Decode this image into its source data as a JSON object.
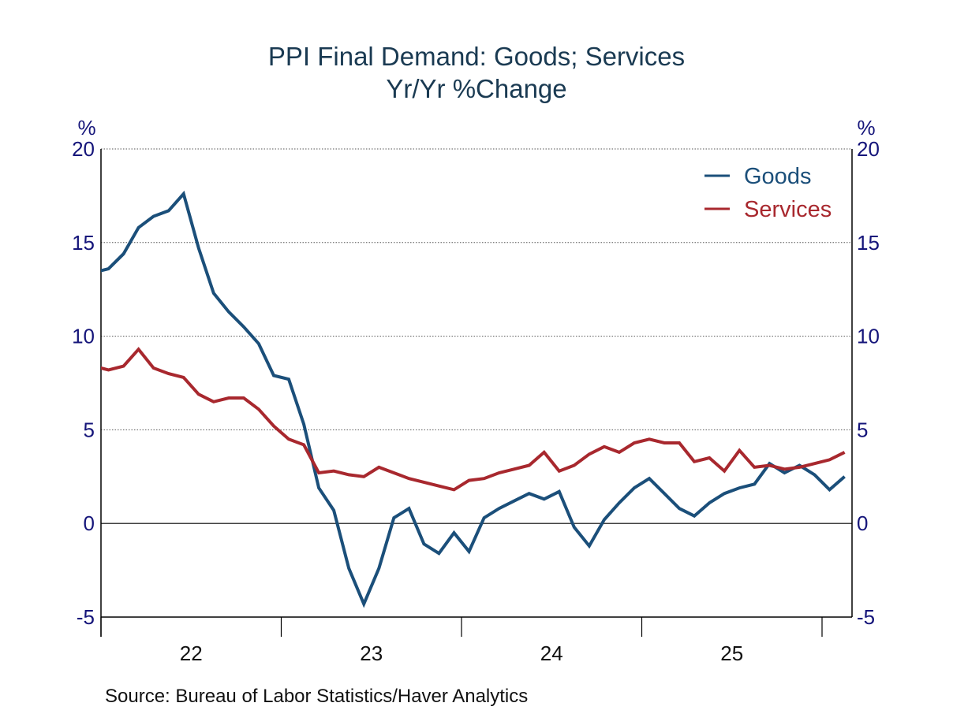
{
  "chart_data": {
    "type": "line",
    "title": "PPI Final Demand: Goods; Services",
    "subtitle": "Yr/Yr %Change",
    "source": "Source:  Bureau of Labor Statistics/Haver Analytics",
    "ylabel_left": "%",
    "ylabel_right": "%",
    "xlabel": "",
    "ylim": [
      -5,
      20
    ],
    "yticks": [
      -5,
      0,
      5,
      10,
      15,
      20
    ],
    "ytick_labels": [
      "-5",
      "0",
      "5",
      "10",
      "15",
      "20"
    ],
    "xlim_years": [
      2022,
      2026.15
    ],
    "xticks_years": [
      2022,
      2023,
      2024,
      2025,
      2026
    ],
    "x_category_labels": [
      {
        "label": "22",
        "year": 2022
      },
      {
        "label": "23",
        "year": 2023
      },
      {
        "label": "24",
        "year": 2024
      },
      {
        "label": "25",
        "year": 2025
      }
    ],
    "grid": "horizontal-dotted",
    "zero_line": true,
    "legend_position": "top-right",
    "frequency": "monthly",
    "start": "2021-12",
    "x": [
      "2021-12",
      "2022-01",
      "2022-02",
      "2022-03",
      "2022-04",
      "2022-05",
      "2022-06",
      "2022-07",
      "2022-08",
      "2022-09",
      "2022-10",
      "2022-11",
      "2022-12",
      "2023-01",
      "2023-02",
      "2023-03",
      "2023-04",
      "2023-05",
      "2023-06",
      "2023-07",
      "2023-08",
      "2023-09",
      "2023-10",
      "2023-11",
      "2023-12",
      "2024-01",
      "2024-02",
      "2024-03",
      "2024-04",
      "2024-05",
      "2024-06",
      "2024-07",
      "2024-08",
      "2024-09",
      "2024-10",
      "2024-11",
      "2024-12",
      "2025-01",
      "2025-02",
      "2025-03",
      "2025-04",
      "2025-05",
      "2025-06",
      "2025-07",
      "2025-08",
      "2025-09",
      "2025-10",
      "2025-11",
      "2025-12",
      "2026-01",
      "2026-02"
    ],
    "series": [
      {
        "name": "Goods",
        "color": "#1b4f7a",
        "values": [
          13.4,
          13.6,
          14.4,
          15.8,
          16.4,
          16.7,
          17.6,
          14.7,
          12.3,
          11.3,
          10.5,
          9.6,
          7.9,
          7.7,
          5.3,
          1.9,
          0.7,
          -2.4,
          -4.3,
          -2.4,
          0.3,
          0.8,
          -1.1,
          -1.6,
          -0.5,
          -1.5,
          0.3,
          0.8,
          1.2,
          1.6,
          1.3,
          1.7,
          -0.2,
          -1.2,
          0.2,
          1.1,
          1.9,
          2.4,
          1.6,
          0.8,
          0.4,
          1.1,
          1.6,
          1.9,
          2.1,
          3.2,
          2.7,
          3.1,
          2.6,
          1.8,
          2.5
        ]
      },
      {
        "name": "Services",
        "color": "#a8282e",
        "values": [
          8.4,
          8.2,
          8.4,
          9.3,
          8.3,
          8.0,
          7.8,
          6.9,
          6.5,
          6.7,
          6.7,
          6.1,
          5.2,
          4.5,
          4.2,
          2.7,
          2.8,
          2.6,
          2.5,
          3.0,
          2.7,
          2.4,
          2.2,
          2.0,
          1.8,
          2.3,
          2.4,
          2.7,
          2.9,
          3.1,
          3.8,
          2.8,
          3.1,
          3.7,
          4.1,
          3.8,
          4.3,
          4.5,
          4.3,
          4.3,
          3.3,
          3.5,
          2.8,
          3.9,
          3.0,
          3.1,
          2.9,
          3.0,
          3.2,
          3.4,
          3.8
        ]
      }
    ]
  }
}
